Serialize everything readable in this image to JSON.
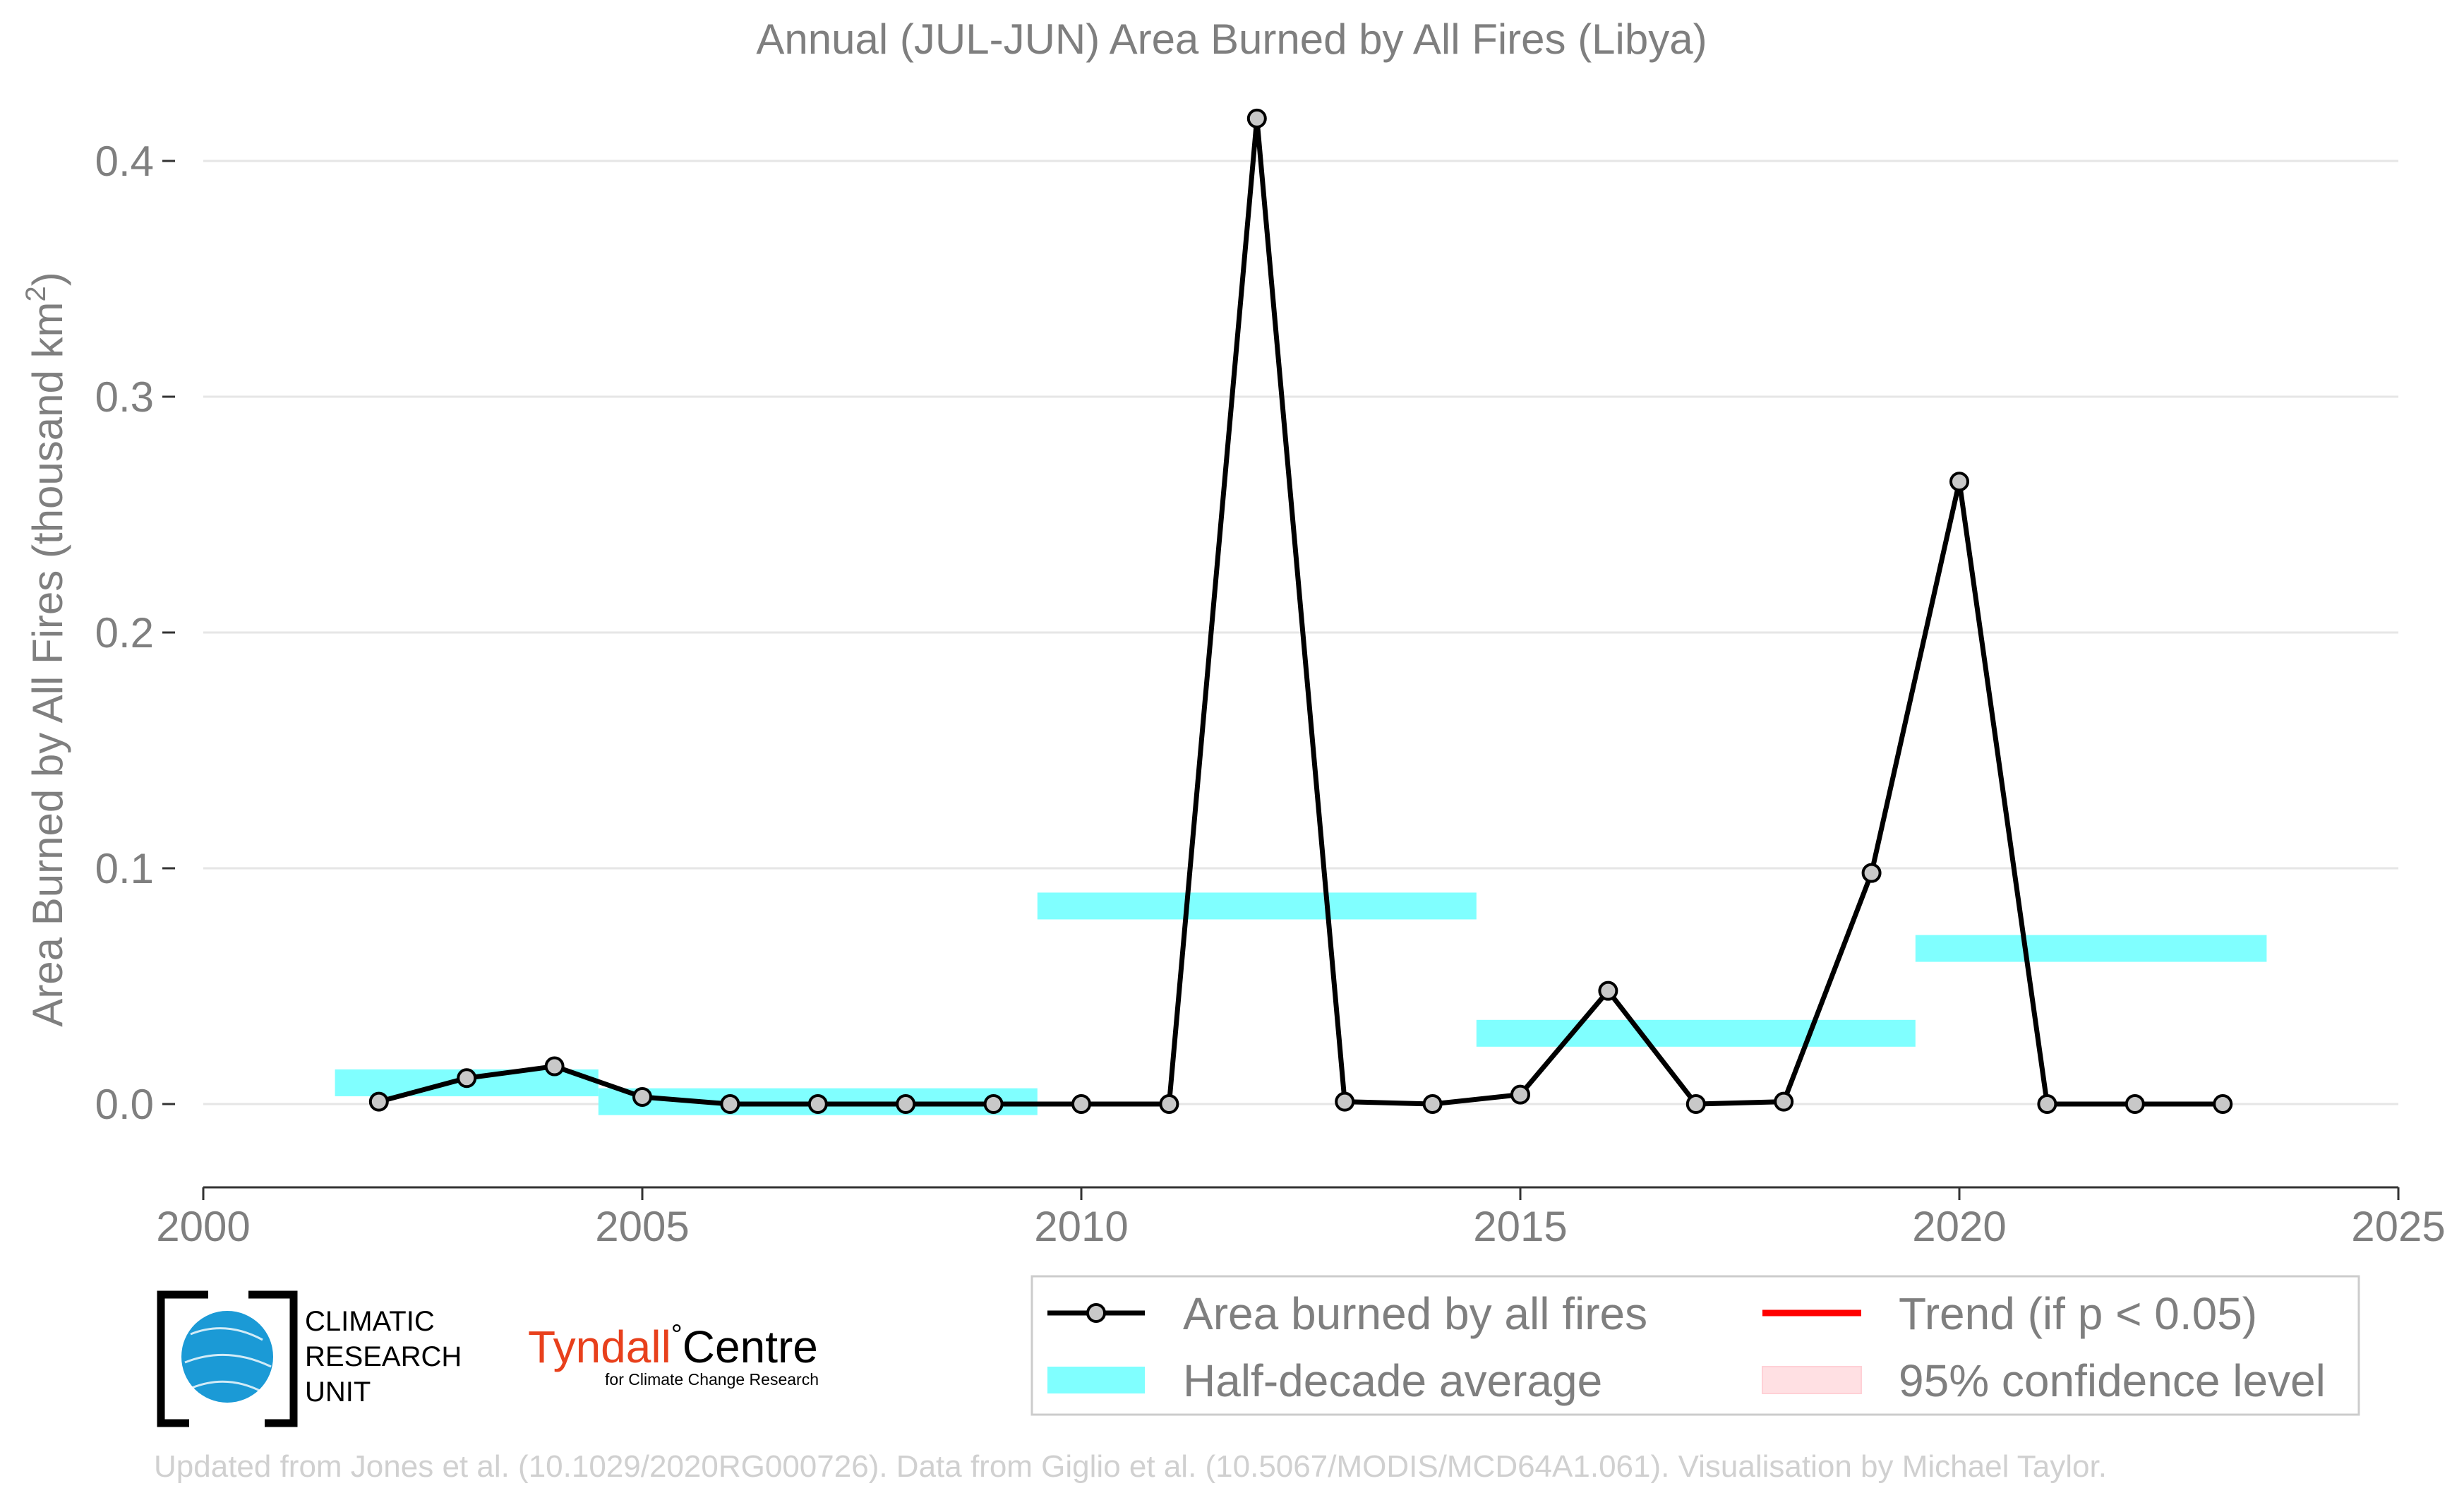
{
  "chart_data": {
    "type": "line",
    "title": "Annual (JUL-JUN) Area Burned by All Fires (Libya)",
    "xlabel": "",
    "ylabel": "Area Burned by All Fires (thousand km",
    "ylabel_sup": "2",
    "ylabel_end": ")",
    "xlim": [
      2000,
      2025
    ],
    "ylim": [
      -0.033,
      0.42
    ],
    "x_ticks": [
      2000,
      2005,
      2010,
      2015,
      2020,
      2025
    ],
    "x_tick_labels": [
      "2000",
      "2005",
      "2010",
      "2015",
      "2020",
      "2025"
    ],
    "y_ticks": [
      0.0,
      0.1,
      0.2,
      0.3,
      0.4
    ],
    "y_tick_labels": [
      "0.0",
      "0.1",
      "0.2",
      "0.3",
      "0.4"
    ],
    "grid": "horizontal",
    "series": [
      {
        "name": "Area burned by all fires",
        "color": "#000000",
        "marker_fill": "#c8c8c8",
        "x": [
          2002,
          2003,
          2004,
          2005,
          2006,
          2007,
          2008,
          2009,
          2010,
          2011,
          2012,
          2013,
          2014,
          2015,
          2016,
          2017,
          2018,
          2019,
          2020,
          2021,
          2022,
          2023
        ],
        "y": [
          0.001,
          0.011,
          0.016,
          0.003,
          0.0,
          0.0,
          0.0,
          0.0,
          0.0,
          0.0,
          0.418,
          0.001,
          0.0,
          0.004,
          0.048,
          0.0,
          0.001,
          0.098,
          0.264,
          0.0,
          0.0,
          0.0
        ]
      }
    ],
    "half_decade_average": {
      "name": "Half-decade average",
      "color": "#80ffff",
      "segments": [
        {
          "x0": 2001.5,
          "x1": 2004.5,
          "y": 0.009
        },
        {
          "x0": 2004.5,
          "x1": 2009.5,
          "y": 0.001
        },
        {
          "x0": 2009.5,
          "x1": 2014.5,
          "y": 0.084
        },
        {
          "x0": 2014.5,
          "x1": 2019.5,
          "y": 0.03
        },
        {
          "x0": 2019.5,
          "x1": 2023.5,
          "y": 0.066
        }
      ]
    },
    "legend": {
      "placement": "bottom-right",
      "items": [
        {
          "label": "Area burned by all fires",
          "kind": "line-marker",
          "color": "#000000"
        },
        {
          "label": "Trend (if p < 0.05)",
          "kind": "line",
          "color": "#ff0000"
        },
        {
          "label": "Half-decade average",
          "kind": "band",
          "color": "#80ffff"
        },
        {
          "label": "95% confidence level",
          "kind": "band",
          "color": "#ffe0e3"
        }
      ]
    }
  },
  "logos": {
    "cru": {
      "line1": "CLIMATIC",
      "line2": "RESEARCH",
      "line3": "UNIT",
      "globe_color": "#1b9ad6"
    },
    "tyndall": {
      "name1": "Tyndall",
      "degree": "°",
      "name2": "Centre",
      "sub": "for Climate Change Research",
      "name1_color": "#e8401c"
    }
  },
  "credit": "Updated from Jones et al. (10.1029/2020RG000726). Data from Giglio et al. (10.5067/MODIS/MCD64A1.061). Visualisation by Michael Taylor."
}
